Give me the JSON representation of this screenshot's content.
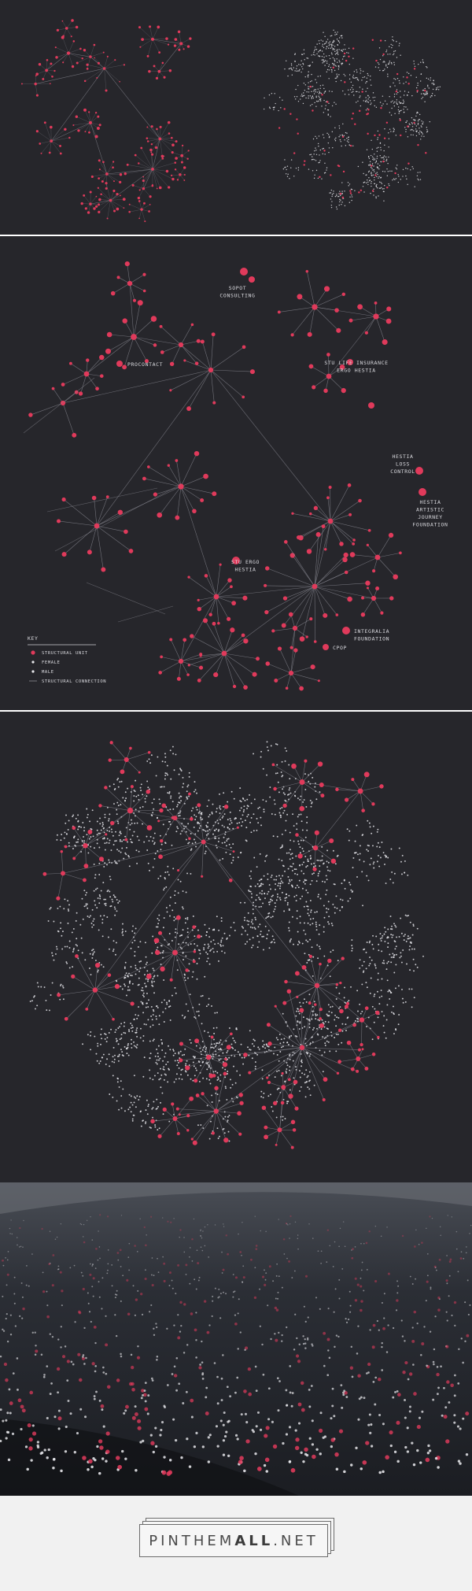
{
  "colors": {
    "background": "#26262b",
    "structural_unit": "#e03a5b",
    "person": "#e8e8ec",
    "connection": "#8a8a93",
    "footer": "#f1f1f1"
  },
  "units": [
    {
      "id": "sopot",
      "text": [
        "SOPOT",
        "CONSULTING"
      ]
    },
    {
      "id": "procontact",
      "text": [
        "PROCONTACT"
      ]
    },
    {
      "id": "stu_life",
      "text": [
        "STU LIFE INSURANCE",
        "ERGO HESTIA"
      ]
    },
    {
      "id": "loss",
      "text": [
        "HESTIA",
        "LOSS",
        "CONTROL"
      ]
    },
    {
      "id": "artistic",
      "text": [
        "HESTIA",
        "ARTISTIC",
        "JOURNEY",
        "FOUNDATION"
      ]
    },
    {
      "id": "stu_ergo",
      "text": [
        "STU ERGO",
        "HESTIA"
      ]
    },
    {
      "id": "integralia",
      "text": [
        "INTEGRALIA",
        "FOUNDATION"
      ]
    },
    {
      "id": "cpop",
      "text": [
        "CPOP"
      ]
    }
  ],
  "key": {
    "title": "KEY",
    "items": [
      {
        "icon": "structural-unit-dot-icon",
        "label": "STRUCTURAL UNIT"
      },
      {
        "icon": "female-dot-icon",
        "label": "FEMALE"
      },
      {
        "icon": "male-dot-icon",
        "label": "MALE"
      },
      {
        "icon": "connection-line-icon",
        "label": "STRUCTURAL CONNECTION"
      }
    ]
  },
  "footer": {
    "logo_regular": "PINTHEM",
    "logo_bold": "ALL",
    "logo_suffix": ".NET"
  }
}
